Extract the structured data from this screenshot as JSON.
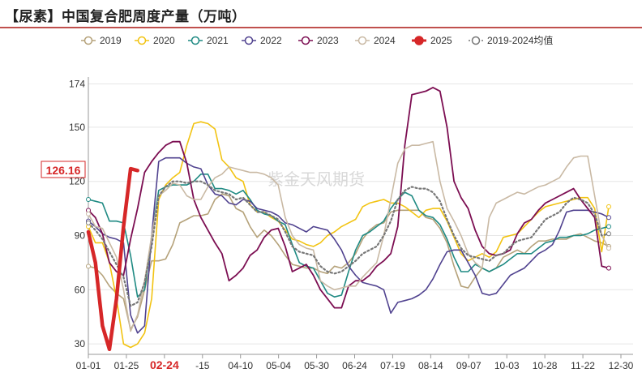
{
  "title": "【尿素】中国复合肥周度产量（万吨）",
  "watermark": "紫金天风期货",
  "chart_data": {
    "type": "line",
    "title": "【尿素】中国复合肥周度产量（万吨）",
    "xlabel": "",
    "ylabel": "",
    "ylim": [
      26,
      176
    ],
    "y_ticks": [
      30,
      60,
      90,
      120,
      150,
      174
    ],
    "x_ticks": [
      "01-01",
      "01-25",
      "02-24",
      "-15",
      "04-10",
      "05-04",
      "05-30",
      "06-24",
      "07-19",
      "08-14",
      "09-07",
      "10-03",
      "10-28",
      "11-22",
      "12-30"
    ],
    "highlight_tick": "02-24",
    "grid": "horizontal",
    "legend_position": "top",
    "callout": {
      "label": "126.16",
      "value": 126.16
    },
    "series": [
      {
        "name": "2019",
        "color": "#b5a27a",
        "dash": "solid",
        "marker": false,
        "width": 1.6,
        "values": [
          73,
          72,
          68,
          62,
          58,
          55,
          38,
          45,
          60,
          76,
          76,
          77,
          85,
          97,
          99,
          101,
          101,
          102,
          110,
          113,
          112,
          105,
          103,
          95,
          89,
          93,
          90,
          85,
          79,
          74,
          73,
          72,
          72,
          70,
          69,
          73,
          72,
          75,
          80,
          88,
          93,
          96,
          97,
          103,
          104,
          104,
          104,
          104,
          100,
          99,
          94,
          86,
          73,
          62,
          61,
          67,
          72,
          70,
          72,
          78,
          80,
          82,
          80,
          84,
          87,
          87,
          88,
          88,
          88,
          90,
          91,
          89,
          87,
          86,
          84
        ]
      },
      {
        "name": "2020",
        "color": "#f2c311",
        "dash": "solid",
        "marker": false,
        "width": 1.6,
        "values": [
          95,
          86,
          86,
          75,
          55,
          30,
          28,
          30,
          36,
          55,
          110,
          118,
          122,
          125,
          140,
          152,
          153,
          152,
          149,
          132,
          128,
          122,
          120,
          107,
          103,
          103,
          100,
          98,
          93,
          88,
          87,
          85,
          84,
          86,
          90,
          92,
          95,
          97,
          99,
          106,
          108,
          109,
          110,
          108,
          108,
          106,
          103,
          100,
          104,
          105,
          105,
          98,
          89,
          80,
          76,
          78,
          80,
          78,
          81,
          89,
          90,
          91,
          95,
          99,
          103,
          106,
          107,
          108,
          109,
          110,
          111,
          111,
          105,
          81,
          106
        ]
      },
      {
        "name": "2021",
        "color": "#1f8a83",
        "dash": "solid",
        "marker": false,
        "width": 1.6,
        "values": [
          110,
          109,
          108,
          98,
          98,
          97,
          79,
          56,
          60,
          90,
          115,
          117,
          118,
          118,
          118,
          120,
          124,
          124,
          116,
          116,
          115,
          113,
          115,
          110,
          104,
          102,
          101,
          98,
          96,
          85,
          75,
          73,
          72,
          65,
          58,
          56,
          57,
          70,
          82,
          90,
          92,
          95,
          98,
          105,
          110,
          114,
          112,
          104,
          101,
          100,
          96,
          88,
          78,
          70,
          70,
          74,
          72,
          70,
          72,
          74,
          77,
          80,
          80,
          80,
          83,
          86,
          87,
          89,
          89,
          90,
          90,
          91,
          93,
          94,
          95
        ]
      },
      {
        "name": "2022",
        "color": "#50428f",
        "dash": "solid",
        "marker": false,
        "width": 1.6,
        "values": [
          98,
          95,
          91,
          89,
          88,
          86,
          46,
          36,
          40,
          90,
          131,
          133,
          133,
          133,
          130,
          128,
          127,
          118,
          113,
          112,
          108,
          107,
          110,
          109,
          105,
          104,
          103,
          101,
          97,
          96,
          94,
          92,
          95,
          94,
          93,
          88,
          82,
          73,
          68,
          64,
          63,
          62,
          60,
          47,
          53,
          54,
          55,
          57,
          60,
          66,
          74,
          81,
          82,
          82,
          75,
          68,
          58,
          57,
          58,
          63,
          68,
          70,
          72,
          76,
          80,
          82,
          85,
          93,
          103,
          104,
          104,
          104,
          103,
          102,
          100
        ]
      },
      {
        "name": "2023",
        "color": "#7c0e52",
        "dash": "solid",
        "marker": false,
        "width": 1.8,
        "values": [
          104,
          100,
          91,
          75,
          70,
          68,
          88,
          105,
          125,
          131,
          136,
          140,
          142,
          142,
          130,
          110,
          100,
          93,
          86,
          80,
          65,
          68,
          72,
          79,
          82,
          89,
          93,
          94,
          84,
          70,
          72,
          74,
          68,
          60,
          55,
          50,
          50,
          62,
          65,
          65,
          68,
          73,
          76,
          80,
          95,
          140,
          168,
          169,
          170,
          172,
          170,
          150,
          120,
          111,
          105,
          93,
          84,
          80,
          79,
          80,
          82,
          91,
          97,
          99,
          104,
          108,
          110,
          112,
          114,
          116,
          110,
          105,
          100,
          73,
          72
        ]
      },
      {
        "name": "2024",
        "color": "#c9b9a4",
        "dash": "solid",
        "marker": false,
        "width": 1.6,
        "values": [
          102,
          95,
          94,
          86,
          78,
          60,
          37,
          46,
          65,
          90,
          112,
          115,
          119,
          118,
          112,
          110,
          110,
          117,
          122,
          124,
          128,
          127,
          126,
          125,
          125,
          124,
          122,
          118,
          100,
          90,
          85,
          83,
          82,
          65,
          62,
          60,
          61,
          62,
          62,
          67,
          71,
          75,
          90,
          110,
          130,
          138,
          140,
          140,
          141,
          142,
          120,
          105,
          98,
          90,
          80,
          75,
          72,
          100,
          108,
          110,
          112,
          114,
          113,
          115,
          117,
          118,
          120,
          122,
          128,
          133,
          134,
          134,
          112,
          90,
          83
        ]
      },
      {
        "name": "2025",
        "color": "#d62728",
        "dash": "solid",
        "marker": false,
        "width": 4.5,
        "values": [
          92,
          75,
          40,
          27,
          55,
          95,
          127,
          126
        ]
      },
      {
        "name": "2019-2024均值",
        "color": "#777777",
        "dash": "dots",
        "marker": true,
        "width": 2.2,
        "values": [
          97,
          93,
          88,
          81,
          74,
          67,
          51,
          53,
          64,
          84,
          112,
          117,
          120,
          120,
          119,
          120,
          120,
          118,
          115,
          114,
          113,
          110,
          111,
          107,
          103,
          103,
          101,
          99,
          92,
          84,
          81,
          80,
          79,
          73,
          70,
          69,
          70,
          73,
          76,
          80,
          82,
          84,
          90,
          98,
          110,
          115,
          117,
          116,
          116,
          114,
          109,
          99,
          90,
          83,
          79,
          78,
          77,
          76,
          79,
          80,
          84,
          87,
          88,
          89,
          94,
          99,
          101,
          103,
          108,
          111,
          110,
          108,
          102,
          90,
          91
        ]
      }
    ]
  }
}
